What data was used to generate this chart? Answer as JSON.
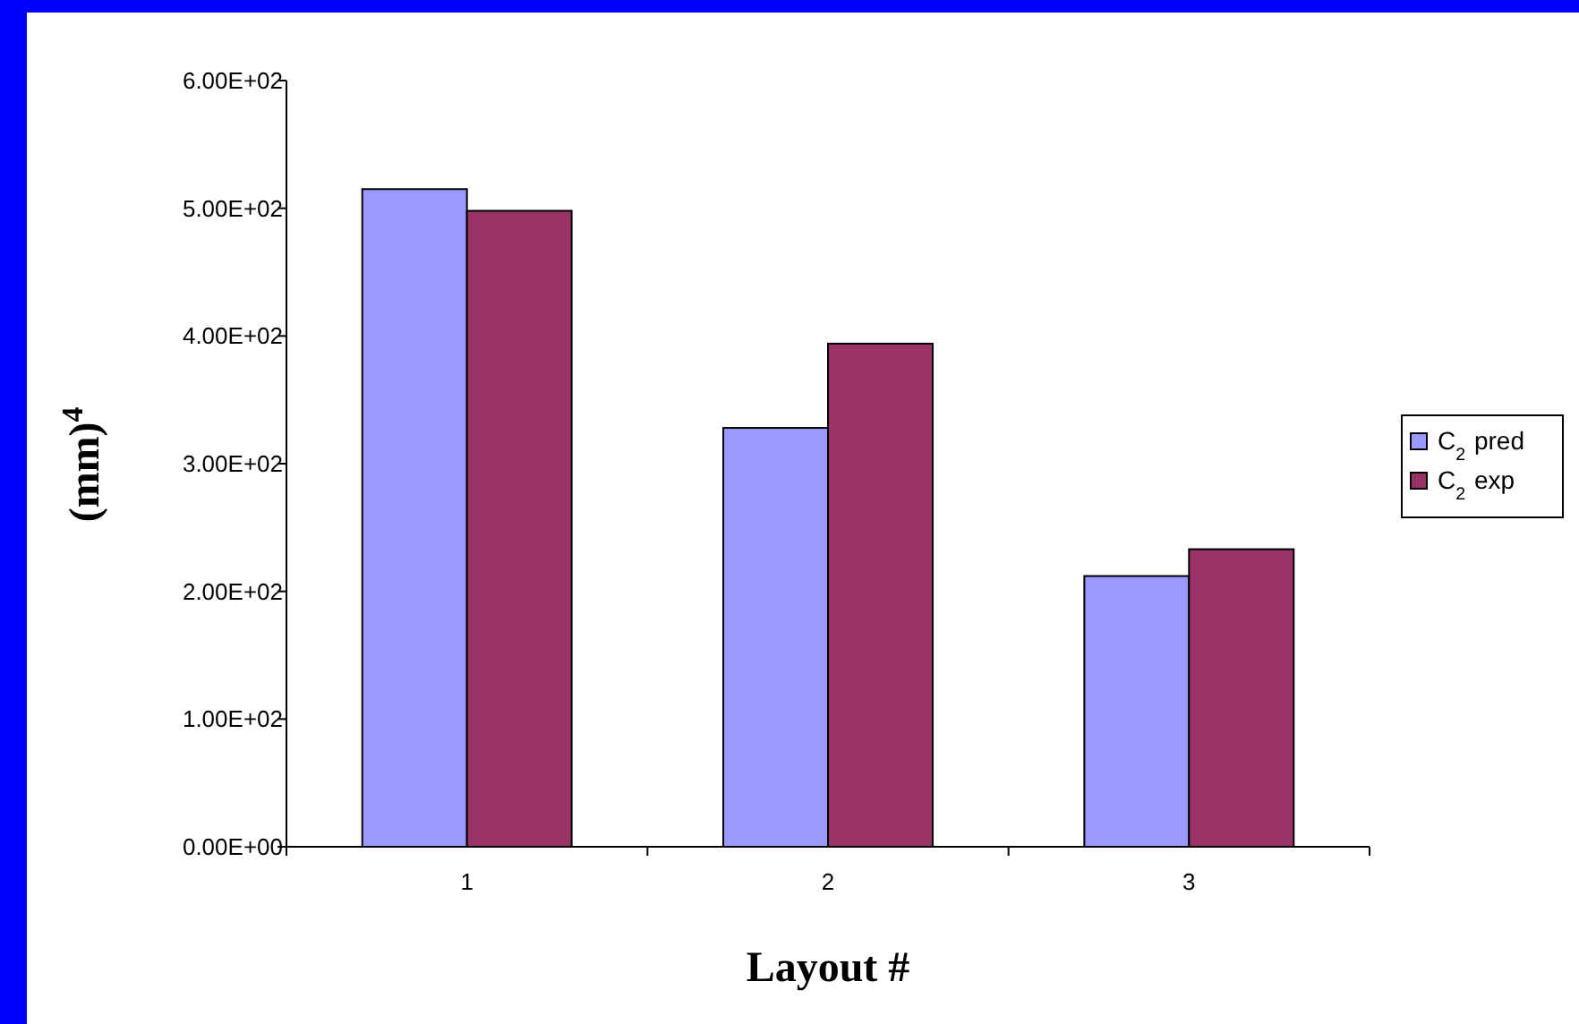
{
  "chart_data": {
    "type": "bar",
    "xlabel": "Layout #",
    "ylabel": "(mm)$^{4}$",
    "categories": [
      "1",
      "2",
      "3"
    ],
    "series": [
      {
        "name": "C$_{2}$ pred",
        "color": "#9999ff",
        "values": [
          515,
          328,
          212
        ]
      },
      {
        "name": "C$_{2}$ exp",
        "color": "#993366",
        "values": [
          498,
          394,
          233
        ]
      }
    ],
    "ylim": [
      0,
      600
    ],
    "yticks": [
      {
        "value": 0,
        "label": "0.00E+00"
      },
      {
        "value": 100,
        "label": "1.00E+02"
      },
      {
        "value": 200,
        "label": "2.00E+02"
      },
      {
        "value": 300,
        "label": "3.00E+02"
      },
      {
        "value": 400,
        "label": "4.00E+02"
      },
      {
        "value": 500,
        "label": "5.00E+02"
      },
      {
        "value": 600,
        "label": "6.00E+02"
      }
    ],
    "grid": false,
    "legend": "right"
  }
}
